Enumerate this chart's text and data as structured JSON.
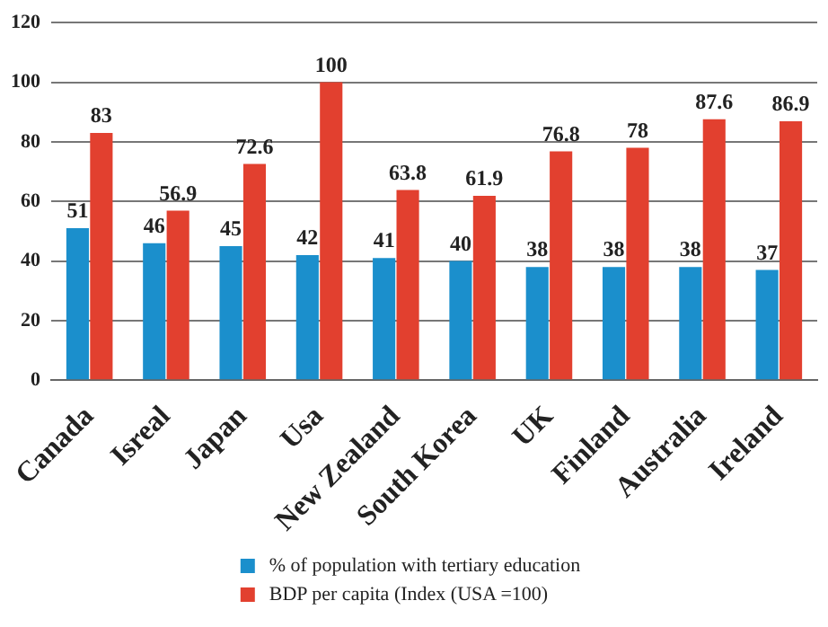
{
  "chart_data": {
    "type": "bar",
    "categories": [
      "Canada",
      "Isreal",
      "Japan",
      "Usa",
      "New Zealand",
      "South Korea",
      "UK",
      "Finland",
      "Australia",
      "Ireland"
    ],
    "series": [
      {
        "name": "% of population with tertiary education",
        "color": "#1b8fcc",
        "values": [
          51,
          46,
          45,
          42,
          41,
          40,
          38,
          38,
          38,
          37
        ]
      },
      {
        "name": "BDP per capita (Index (USA =100)",
        "color": "#e2402f",
        "values": [
          83,
          56.9,
          72.6,
          100,
          63.8,
          61.9,
          76.8,
          78,
          87.6,
          86.9
        ]
      }
    ],
    "ylim": [
      0,
      120
    ],
    "yticks": [
      0,
      20,
      40,
      60,
      80,
      100,
      120
    ],
    "grid": "y",
    "legend": "bottom",
    "data_labels": true
  }
}
